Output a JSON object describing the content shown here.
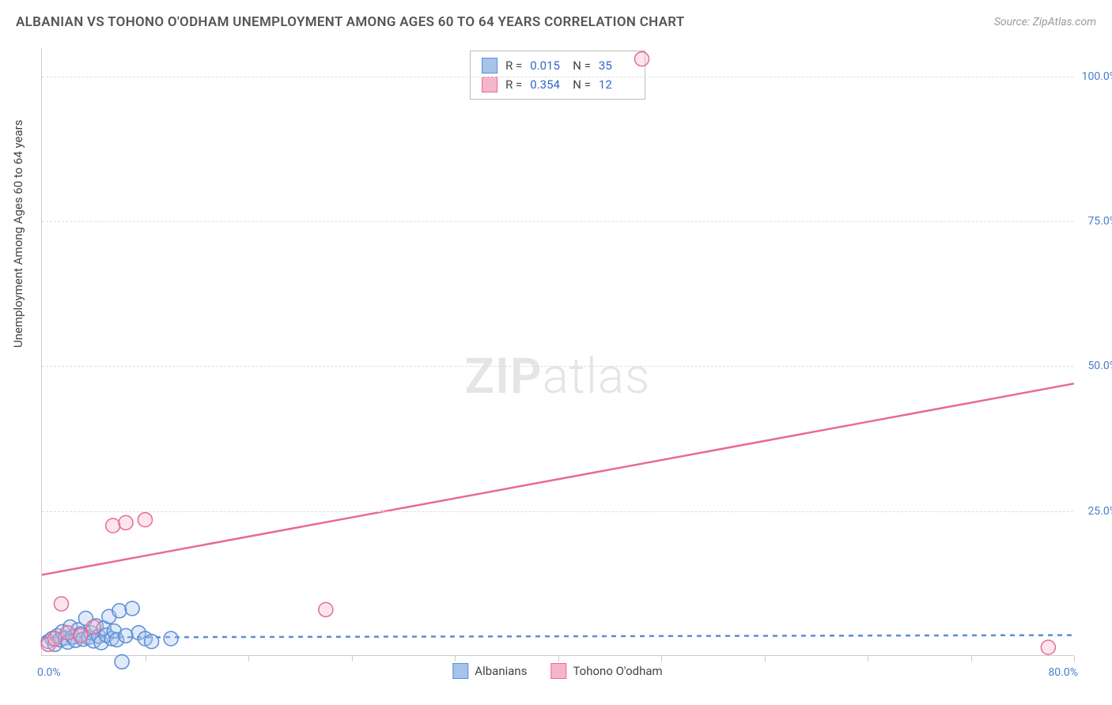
{
  "title": "ALBANIAN VS TOHONO O'ODHAM UNEMPLOYMENT AMONG AGES 60 TO 64 YEARS CORRELATION CHART",
  "source": "Source: ZipAtlas.com",
  "ylabel": "Unemployment Among Ages 60 to 64 years",
  "watermark_zip": "ZIP",
  "watermark_atlas": "atlas",
  "chart": {
    "type": "scatter",
    "xlim": [
      0,
      80
    ],
    "ylim": [
      0,
      105
    ],
    "x_tick_start": "0.0%",
    "x_tick_end": "80.0%",
    "y_ticks": [
      {
        "v": 25,
        "label": "25.0%"
      },
      {
        "v": 50,
        "label": "50.0%"
      },
      {
        "v": 75,
        "label": "75.0%"
      },
      {
        "v": 100,
        "label": "100.0%"
      }
    ],
    "x_minor_ticks": [
      8,
      16,
      24,
      32,
      40,
      48,
      56,
      64,
      72,
      80
    ],
    "background_color": "#ffffff",
    "grid_color": "#dddddd",
    "grid_dash": "4,4",
    "axis_color": "#cccccc",
    "tick_label_color": "#4a7ec9",
    "tick_fontsize": 14,
    "ylabel_fontsize": 15,
    "point_radius": 9,
    "point_fill_opacity": 0.35,
    "point_stroke_width": 1.5,
    "trend_line_width": 2.5,
    "series": [
      {
        "name": "Albanians",
        "color": "#5b8dd6",
        "fill": "#a6c4ea",
        "stroke": "#5b8dd6",
        "R": "0.015",
        "N": "35",
        "trend": {
          "x1": 0,
          "y1": 3.2,
          "x2": 80,
          "y2": 3.6,
          "dash": "6,6"
        },
        "points": [
          [
            0.5,
            2.5
          ],
          [
            0.8,
            3.0
          ],
          [
            1.0,
            2.0
          ],
          [
            1.2,
            3.5
          ],
          [
            1.4,
            2.8
          ],
          [
            1.6,
            4.2
          ],
          [
            1.8,
            3.1
          ],
          [
            2.0,
            2.4
          ],
          [
            2.2,
            5.0
          ],
          [
            2.4,
            3.3
          ],
          [
            2.6,
            2.7
          ],
          [
            2.8,
            4.5
          ],
          [
            3.0,
            3.8
          ],
          [
            3.2,
            2.9
          ],
          [
            3.4,
            6.5
          ],
          [
            3.6,
            3.2
          ],
          [
            3.8,
            4.0
          ],
          [
            4.0,
            2.6
          ],
          [
            4.2,
            5.2
          ],
          [
            4.4,
            3.4
          ],
          [
            4.6,
            2.3
          ],
          [
            4.8,
            4.8
          ],
          [
            5.0,
            3.6
          ],
          [
            5.2,
            6.8
          ],
          [
            5.4,
            3.0
          ],
          [
            5.6,
            4.3
          ],
          [
            5.8,
            2.8
          ],
          [
            6.0,
            7.8
          ],
          [
            6.2,
            -1.0
          ],
          [
            6.5,
            3.5
          ],
          [
            7.0,
            8.2
          ],
          [
            7.5,
            4.0
          ],
          [
            8.0,
            3.0
          ],
          [
            8.5,
            2.5
          ],
          [
            10.0,
            3.0
          ]
        ]
      },
      {
        "name": "Tohono O'odham",
        "color": "#e86b92",
        "fill": "#f5b6c9",
        "stroke": "#e86b92",
        "R": "0.354",
        "N": "12",
        "trend": {
          "x1": 0,
          "y1": 14,
          "x2": 80,
          "y2": 47,
          "dash": null
        },
        "points": [
          [
            0.5,
            2.0
          ],
          [
            1.0,
            3.0
          ],
          [
            1.5,
            9.0
          ],
          [
            2.0,
            4.0
          ],
          [
            3.0,
            3.5
          ],
          [
            5.5,
            22.5
          ],
          [
            6.5,
            23.0
          ],
          [
            8.0,
            23.5
          ],
          [
            22.0,
            8.0
          ],
          [
            46.5,
            103.0
          ],
          [
            78.0,
            1.5
          ],
          [
            4.0,
            5.0
          ]
        ]
      }
    ]
  },
  "legend_box": {
    "r_label": "R =",
    "n_label": "N ="
  },
  "bottom_legend": [
    {
      "label": "Albanians",
      "fill": "#a6c4ea",
      "stroke": "#5b8dd6"
    },
    {
      "label": "Tohono O'odham",
      "fill": "#f5b6c9",
      "stroke": "#e86b92"
    }
  ]
}
